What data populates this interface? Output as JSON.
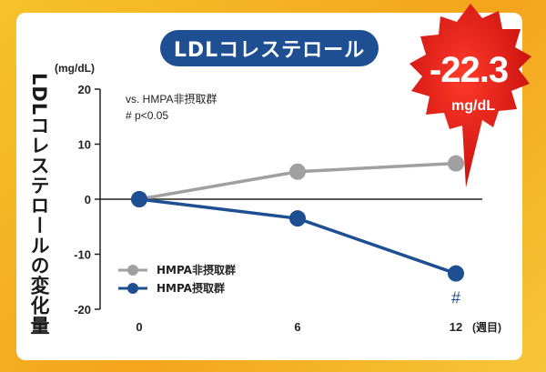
{
  "chart_data": {
    "type": "line",
    "title": "LDLコレステロール",
    "ylabel": "LDLコレステロールの変化量",
    "yunit": "(mg/dL)",
    "xunit": "(週目)",
    "x": [
      0,
      6,
      12
    ],
    "xtick_labels": [
      "0",
      "6",
      "12"
    ],
    "ylim": [
      -20,
      20
    ],
    "yticks": [
      20,
      10,
      0,
      -10,
      -20
    ],
    "ytick_labels": [
      "20",
      "10",
      "0",
      "-10",
      "-20"
    ],
    "grid": false,
    "legend_position": "bottom-left",
    "series": [
      {
        "name": "HMPA非摂取群",
        "values": [
          0,
          5,
          6.5
        ],
        "color": "#a0a0a0"
      },
      {
        "name": "HMPA摂取群",
        "values": [
          0,
          -3.5,
          -13.5
        ],
        "color": "#1d4f92"
      }
    ],
    "annotations": {
      "comparison": "vs. HMPA非摂取群",
      "significance": "# p<0.05",
      "marker": "#",
      "highlight_value": "-22.3",
      "highlight_unit": "mg/dL"
    },
    "colors": {
      "badge": "#e02020",
      "axis": "#222222"
    }
  }
}
